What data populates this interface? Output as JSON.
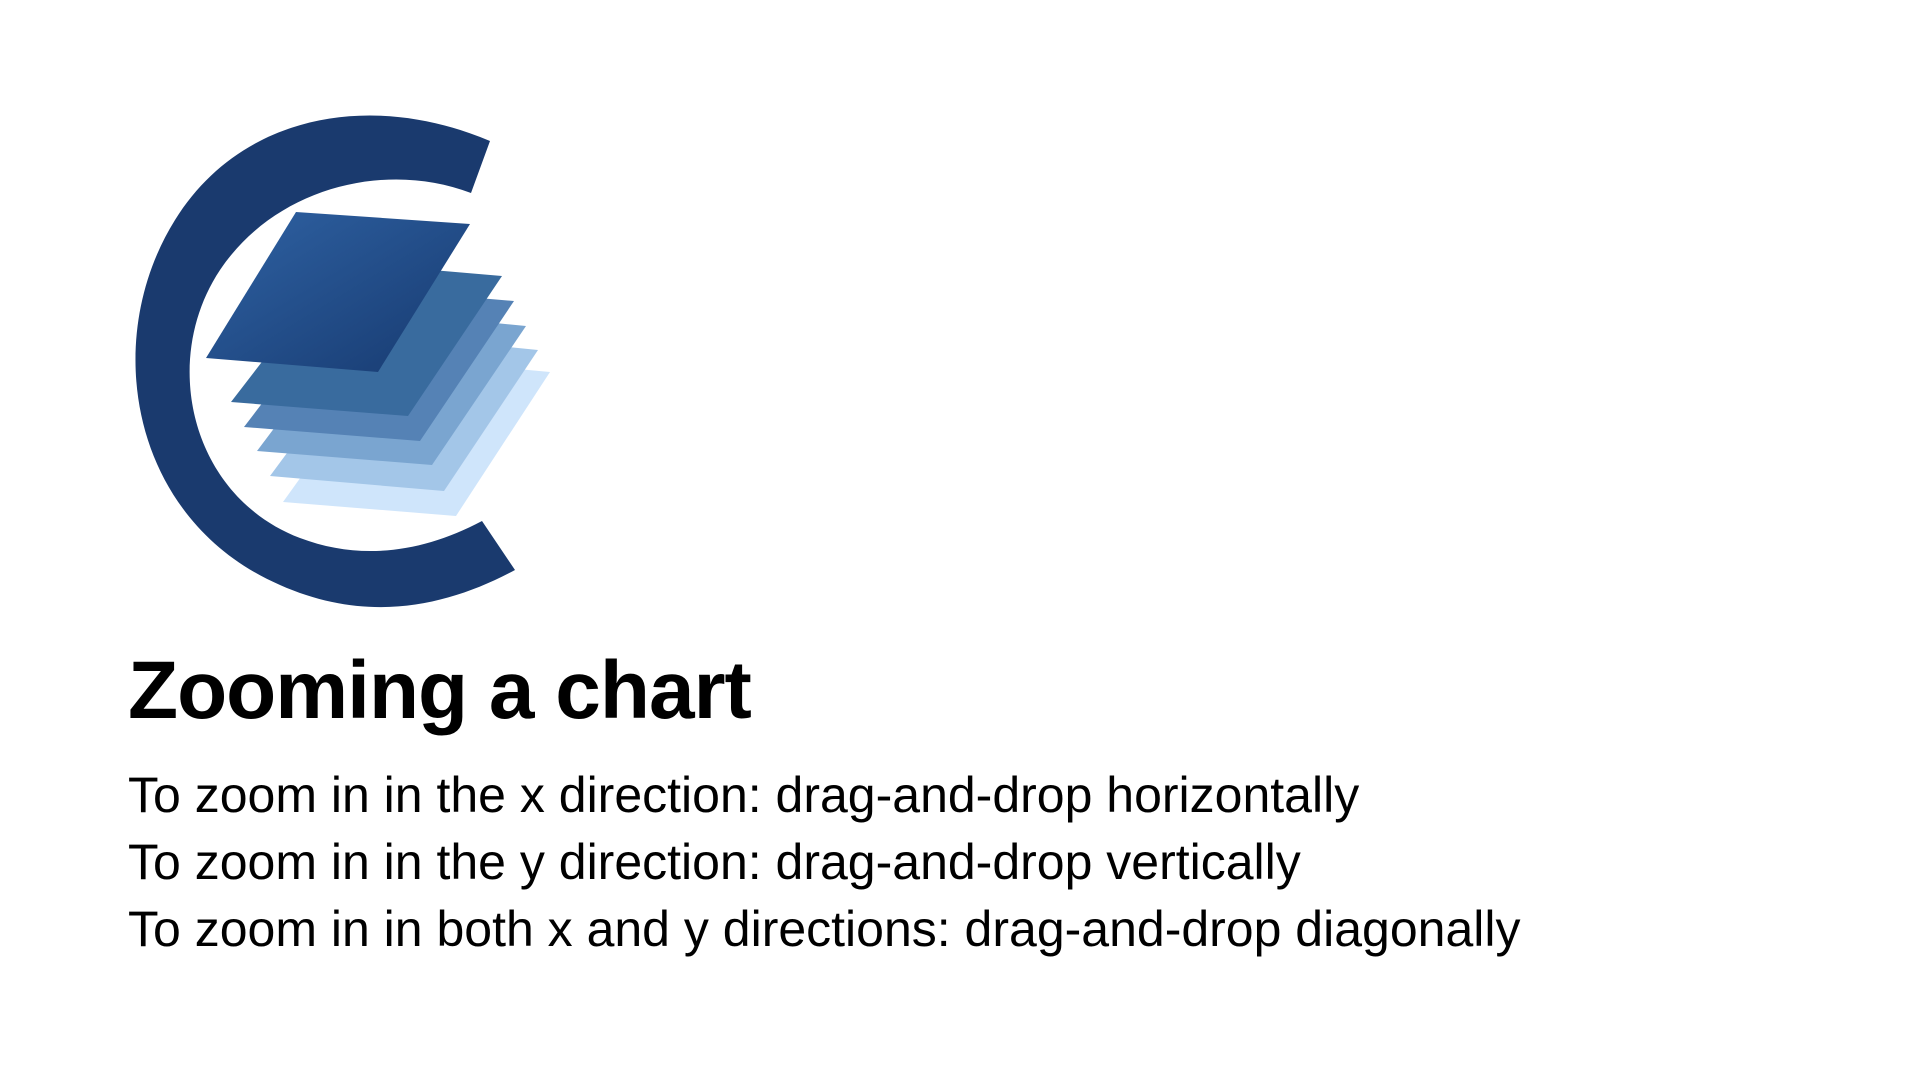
{
  "slide": {
    "title": "Zooming a chart",
    "instructions": [
      "To zoom in in the x direction: drag-and-drop horizontally",
      "To zoom in in the y direction: drag-and-drop vertically",
      "To zoom in in both x and y directions: drag-and-drop diagonally"
    ]
  },
  "logo": {
    "icon": "stacked-layers-c-logo",
    "colors": {
      "ring": "#1a3a6e",
      "layer_top": "#2a5a98",
      "layer_bottom": "#cfe5fb"
    }
  }
}
